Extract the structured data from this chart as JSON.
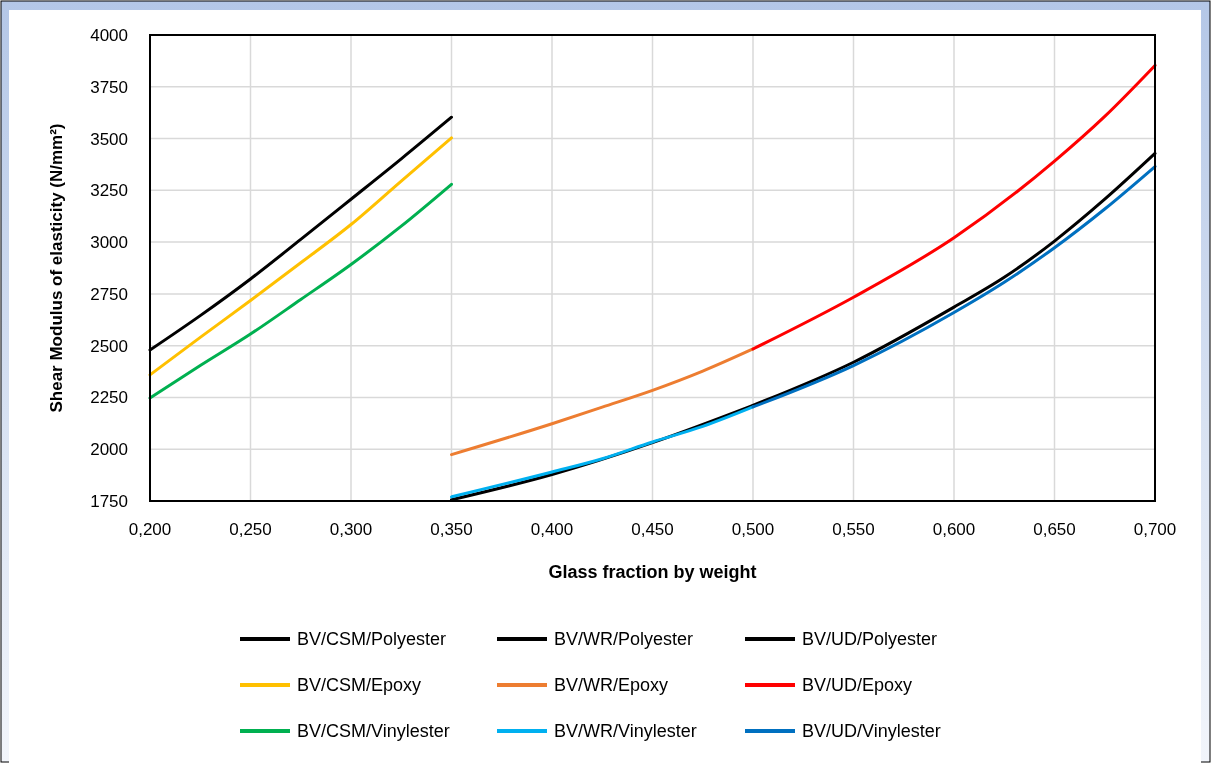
{
  "chart_data": {
    "type": "line",
    "xlabel": "Glass fraction by weight",
    "ylabel": "Shear Modulus of elasticity (N/mm²)",
    "xlim": [
      0.2,
      0.7
    ],
    "xticks": [
      {
        "value": 0.2,
        "label": "0,200"
      },
      {
        "value": 0.25,
        "label": "0,250"
      },
      {
        "value": 0.3,
        "label": "0,300"
      },
      {
        "value": 0.35,
        "label": "0,350"
      },
      {
        "value": 0.4,
        "label": "0,400"
      },
      {
        "value": 0.45,
        "label": "0,450"
      },
      {
        "value": 0.5,
        "label": "0,500"
      },
      {
        "value": 0.55,
        "label": "0,550"
      },
      {
        "value": 0.6,
        "label": "0,600"
      },
      {
        "value": 0.65,
        "label": "0,650"
      },
      {
        "value": 0.7,
        "label": "0,700"
      }
    ],
    "ylim": [
      1750,
      4000
    ],
    "yticks": [
      1750,
      2000,
      2250,
      2500,
      2750,
      3000,
      3250,
      3500,
      3750,
      4000
    ],
    "grid": true,
    "legend": "bottom",
    "marker": "none",
    "line_style": "solid",
    "series": [
      {
        "name": "BV/CSM/Polyester",
        "color": "#000000",
        "x": [
          0.2,
          0.225,
          0.25,
          0.275,
          0.3,
          0.325,
          0.35
        ],
        "values": [
          2479,
          2645,
          2822,
          3013,
          3207,
          3402,
          3603
        ]
      },
      {
        "name": "BV/WR/Polyester",
        "color": "#000000",
        "x": [
          0.35,
          0.4,
          0.45,
          0.5
        ],
        "values": [
          1756,
          1878,
          2032,
          2212
        ]
      },
      {
        "name": "BV/UD/Polyester",
        "color": "#000000",
        "x": [
          0.5,
          0.55,
          0.6,
          0.625,
          0.65,
          0.675,
          0.7
        ],
        "values": [
          2212,
          2420,
          2686,
          2830,
          3005,
          3207,
          3428
        ]
      },
      {
        "name": "BV/CSM/Epoxy",
        "color": "#ffc000",
        "x": [
          0.2,
          0.225,
          0.25,
          0.275,
          0.3,
          0.325,
          0.35
        ],
        "values": [
          2359,
          2540,
          2718,
          2900,
          3085,
          3295,
          3503
        ]
      },
      {
        "name": "BV/WR/Epoxy",
        "color": "#ed7d31",
        "x": [
          0.35,
          0.4,
          0.425,
          0.45,
          0.475,
          0.5
        ],
        "values": [
          1974,
          2123,
          2203,
          2284,
          2377,
          2484
        ]
      },
      {
        "name": "BV/UD/Epoxy",
        "color": "#ff0000",
        "x": [
          0.5,
          0.55,
          0.6,
          0.65,
          0.675,
          0.7
        ],
        "values": [
          2484,
          2734,
          3021,
          3391,
          3607,
          3853
        ]
      },
      {
        "name": "BV/CSM/Vinylester",
        "color": "#00b050",
        "x": [
          0.2,
          0.225,
          0.25,
          0.275,
          0.3,
          0.325,
          0.35
        ],
        "values": [
          2247,
          2404,
          2556,
          2723,
          2892,
          3077,
          3279
        ]
      },
      {
        "name": "BV/WR/Vinylester",
        "color": "#00b0f0",
        "x": [
          0.35,
          0.4,
          0.425,
          0.45,
          0.475,
          0.5
        ],
        "values": [
          1770,
          1890,
          1954,
          2035,
          2110,
          2204
        ]
      },
      {
        "name": "BV/UD/Vinylester",
        "color": "#0070c0",
        "x": [
          0.5,
          0.55,
          0.6,
          0.625,
          0.65,
          0.675,
          0.7
        ],
        "values": [
          2204,
          2404,
          2660,
          2806,
          2973,
          3160,
          3365
        ]
      }
    ]
  }
}
